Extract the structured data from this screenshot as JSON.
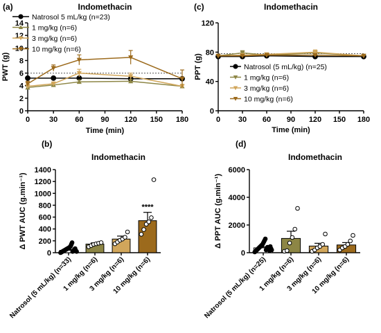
{
  "chart_data": [
    {
      "id": "a",
      "letter": "(a)",
      "type": "line",
      "title": "Indomethacin",
      "xlabel": "Time (min)",
      "ylabel": "PWT (g)",
      "xlim": [
        0,
        180
      ],
      "ylim": [
        0,
        14
      ],
      "xticks": [
        0,
        30,
        60,
        90,
        120,
        150,
        180
      ],
      "yticks": [
        0,
        2,
        4,
        6,
        8,
        10,
        12,
        14
      ],
      "x": [
        0,
        30,
        60,
        120,
        180
      ],
      "reference_line": 6,
      "legend_position": "top-left",
      "series": [
        {
          "name": "Natrosol 5 mL/kg (n=23)",
          "color": "#000000",
          "marker": "circle",
          "values": [
            5.2,
            5.2,
            5.2,
            5.1,
            5.1
          ],
          "err": [
            0.2,
            0.2,
            0.2,
            0.2,
            0.2
          ]
        },
        {
          "name": "1 mg/kg (n=6)",
          "color": "#8d8645",
          "marker": "tri-up",
          "values": [
            3.7,
            4.1,
            4.6,
            4.7,
            3.9
          ],
          "err": [
            0.2,
            0.3,
            0.3,
            0.3,
            0.3
          ]
        },
        {
          "name": "3 mg/kg (n=6)",
          "color": "#d1a65b",
          "marker": "tri-down",
          "values": [
            3.9,
            4.3,
            6.0,
            5.5,
            3.9
          ],
          "err": [
            0.3,
            0.3,
            0.6,
            0.5,
            0.3
          ]
        },
        {
          "name": "10 mg/kg (n=6)",
          "color": "#9c6a1c",
          "marker": "tri-down",
          "values": [
            4.3,
            6.8,
            8.1,
            8.5,
            5.1
          ],
          "err": [
            0.4,
            0.5,
            0.8,
            1.1,
            1.4
          ]
        }
      ]
    },
    {
      "id": "c",
      "letter": "(c)",
      "type": "line",
      "title": "Indomethacin",
      "xlabel": "Time (min)",
      "ylabel": "PPT (g)",
      "xlim": [
        0,
        180
      ],
      "ylim": [
        0,
        120
      ],
      "xticks": [
        0,
        30,
        60,
        90,
        120,
        150,
        180
      ],
      "yticks": [
        0,
        40,
        80,
        120
      ],
      "x": [
        0,
        30,
        60,
        120,
        180
      ],
      "reference_line": 78,
      "legend_position": "bottom-left",
      "series": [
        {
          "name": "Natrosol (5 mL/kg) (n=25)",
          "color": "#000000",
          "marker": "circle",
          "values": [
            74,
            74,
            75,
            74,
            74
          ],
          "err": [
            1,
            1,
            1,
            1,
            1
          ]
        },
        {
          "name": "1 mg/kg (n=6)",
          "color": "#8d8645",
          "marker": "tri-down",
          "values": [
            75,
            79,
            76,
            79,
            75
          ],
          "err": [
            1,
            3,
            2,
            2,
            1
          ]
        },
        {
          "name": "3 mg/kg (n=6)",
          "color": "#d1a65b",
          "marker": "tri-down",
          "values": [
            75,
            76,
            77,
            80,
            75
          ],
          "err": [
            1,
            2,
            2,
            3,
            1
          ]
        },
        {
          "name": "10 mg/kg (n=6)",
          "color": "#9c6a1c",
          "marker": "tri-down",
          "values": [
            75,
            75,
            76,
            76,
            75
          ],
          "err": [
            1,
            1,
            1,
            1,
            1
          ]
        }
      ]
    },
    {
      "id": "b",
      "letter": "(b)",
      "type": "bar",
      "title": "Indomethacin",
      "ylabel": "Δ PWT AUC (g.min⁻¹)",
      "ylim": [
        0,
        1400
      ],
      "yticks": [
        0,
        200,
        400,
        600,
        800,
        1000,
        1200,
        1400
      ],
      "categories": [
        "Natrosol (5 mL/kg) (n=33)",
        "1 mg/kg (n=6)",
        "3 mg/kg (n=6)",
        "10 mg/kg (n=6)"
      ],
      "colors": [
        "#000000",
        "#8d8645",
        "#d1a65b",
        "#9c6a1c"
      ],
      "values": [
        40,
        145,
        230,
        540
      ],
      "err": [
        12,
        20,
        50,
        140
      ],
      "significance": [
        "",
        "",
        "",
        "****"
      ],
      "points": [
        [
          0,
          5,
          10,
          15,
          20,
          25,
          30,
          35,
          40,
          45,
          50,
          55,
          60,
          65,
          70,
          75,
          80,
          85,
          90,
          100,
          110,
          130,
          150,
          170,
          20,
          30,
          40,
          50,
          60,
          70,
          40,
          30,
          20
        ],
        [
          100,
          120,
          140,
          150,
          160,
          170
        ],
        [
          150,
          180,
          210,
          230,
          260,
          350
        ],
        [
          310,
          390,
          480,
          520,
          590,
          1230
        ]
      ]
    },
    {
      "id": "d",
      "letter": "(d)",
      "type": "bar",
      "title": "Indomethacin",
      "ylabel": "Δ PPT AUC (g.min⁻¹)",
      "ylim": [
        0,
        6000
      ],
      "yticks": [
        0,
        2000,
        4000,
        6000
      ],
      "categories": [
        "Natrosol (5 mL/kg) (n=25)",
        "1 mg/kg (n=6)",
        "3 mg/kg (n=6)",
        "10 mg/kg (n=6)"
      ],
      "colors": [
        "#000000",
        "#8d8645",
        "#d1a65b",
        "#9c6a1c"
      ],
      "values": [
        350,
        1030,
        480,
        560
      ],
      "err": [
        70,
        520,
        200,
        170
      ],
      "significance": [
        "",
        "",
        "",
        ""
      ],
      "points": [
        [
          50,
          100,
          150,
          200,
          250,
          300,
          350,
          400,
          450,
          500,
          550,
          600,
          700,
          800,
          900,
          1000,
          200,
          300,
          400,
          250,
          350,
          150,
          450,
          300,
          200
        ],
        [
          100,
          150,
          700,
          1100,
          1700,
          3200
        ],
        [
          100,
          200,
          350,
          450,
          600,
          1350
        ],
        [
          200,
          350,
          450,
          600,
          850,
          1250
        ]
      ]
    }
  ]
}
